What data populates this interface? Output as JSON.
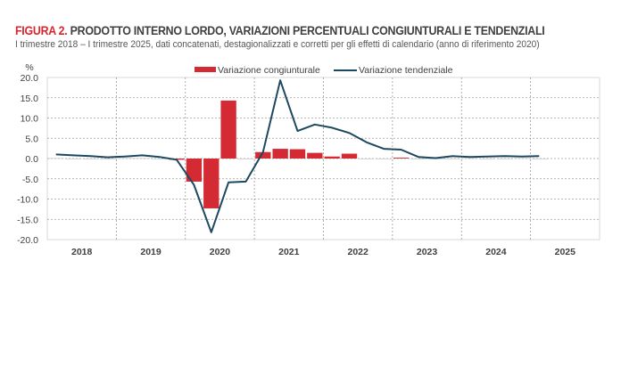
{
  "title": {
    "figure": "FIGURA 2.",
    "text": "PRODOTTO INTERNO LORDO, VARIAZIONI PERCENTUALI CONGIUNTURALI E TENDENZIALI"
  },
  "subtitle": "I trimestre 2018 – I trimestre 2025, dati concatenati, destagionalizzati e corretti per gli effetti di calendario (anno di riferimento 2020)",
  "chart_data": {
    "type": "bar+line",
    "ylabel": "%",
    "ylim": [
      -20,
      20
    ],
    "yticks": [
      "20.0",
      "15.0",
      "10.0",
      "5.0",
      "0.0",
      "-5.0",
      "-10.0",
      "-15.0",
      "-20.0"
    ],
    "years": [
      "2018",
      "2019",
      "2020",
      "2021",
      "2022",
      "2023",
      "2024",
      "2025"
    ],
    "quarters_per_year": 4,
    "grid": true,
    "legend_placement": "top",
    "series": [
      {
        "name": "Variazione congiunturale",
        "type": "bar",
        "color": "#d42a34",
        "values": [
          0.1,
          -0.1,
          -0.1,
          0.0,
          0.1,
          0.1,
          0.0,
          -0.3,
          -5.7,
          -12.3,
          14.3,
          0.0,
          1.6,
          2.4,
          2.3,
          1.4,
          0.5,
          1.2,
          0.0,
          0.0,
          0.2,
          0.0,
          0.0,
          0.0,
          0.1,
          -0.1,
          0.0,
          0.1,
          -0.1
        ]
      },
      {
        "name": "Variazione tendenziale",
        "type": "line",
        "color": "#1d4960",
        "values": [
          1.0,
          0.8,
          0.6,
          0.3,
          0.5,
          0.8,
          0.4,
          -0.3,
          -6.5,
          -18.2,
          -5.9,
          -5.7,
          1.6,
          19.3,
          6.8,
          8.4,
          7.6,
          6.3,
          4.0,
          2.4,
          2.2,
          0.4,
          0.1,
          0.6,
          0.4,
          0.5,
          0.6,
          0.5,
          0.6
        ]
      }
    ]
  }
}
